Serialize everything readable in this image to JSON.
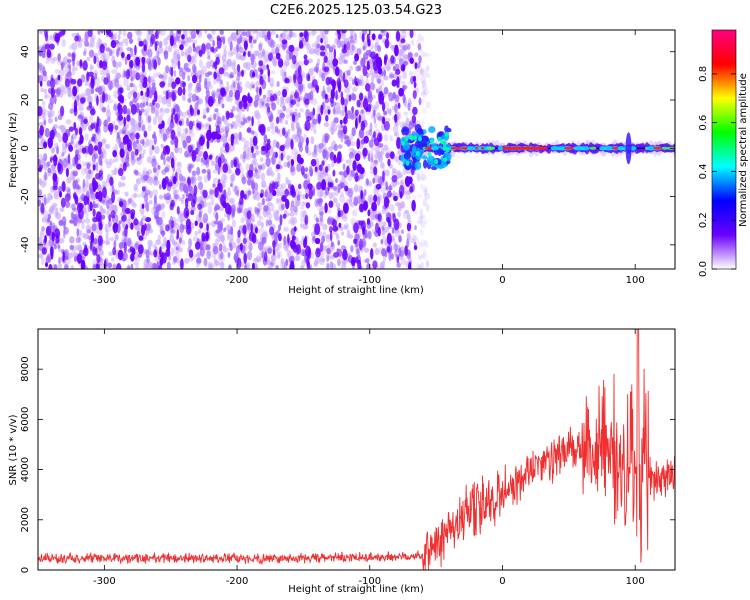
{
  "title": "C2E6.2025.125.03.54.G23",
  "chart_data": [
    {
      "type": "heatmap",
      "xlabel": "Height of straight line (km)",
      "ylabel": "Frequency (Hz)",
      "xlim": [
        -350,
        130
      ],
      "ylim": [
        -50,
        49
      ],
      "xticks": [
        -300,
        -200,
        -100,
        0,
        100
      ],
      "yticks": [
        -40,
        -20,
        0,
        20,
        40
      ],
      "noise_region_x": [
        -350,
        -62
      ],
      "signal_region_x": [
        -75,
        130
      ],
      "signal_center_hz": 0,
      "colorbar": {
        "label": "Normalized spectral amplitude",
        "range": [
          0,
          0.98
        ],
        "ticks": [
          0.0,
          0.2,
          0.4,
          0.6,
          0.8
        ],
        "colors": [
          "#ffffff",
          "#6a00ff",
          "#0000ff",
          "#00ffff",
          "#00ff00",
          "#ffff00",
          "#ff0000",
          "#ff0080"
        ]
      }
    },
    {
      "type": "line",
      "xlabel": "Height of straight line (km)",
      "ylabel": "SNR (10 * v/v)",
      "xlim": [
        -350,
        130
      ],
      "ylim": [
        0,
        9600
      ],
      "xticks": [
        -300,
        -200,
        -100,
        0,
        100
      ],
      "yticks": [
        0,
        2000,
        4000,
        6000,
        8000
      ],
      "line_color": "#ee3030",
      "envelope": {
        "x": [
          -350,
          -300,
          -250,
          -200,
          -150,
          -100,
          -70,
          -60,
          -50,
          -40,
          -30,
          -20,
          -10,
          0,
          10,
          20,
          30,
          40,
          50,
          60,
          70,
          80,
          90,
          100,
          110,
          120,
          130
        ],
        "y": [
          450,
          460,
          480,
          450,
          470,
          500,
          550,
          600,
          900,
          1800,
          2000,
          2400,
          2800,
          3100,
          3500,
          3900,
          4200,
          4500,
          4700,
          4700,
          4600,
          4500,
          4200,
          3800,
          3700,
          3800,
          3900
        ]
      },
      "spike_peak": {
        "x": 102,
        "y": 9600
      }
    }
  ]
}
